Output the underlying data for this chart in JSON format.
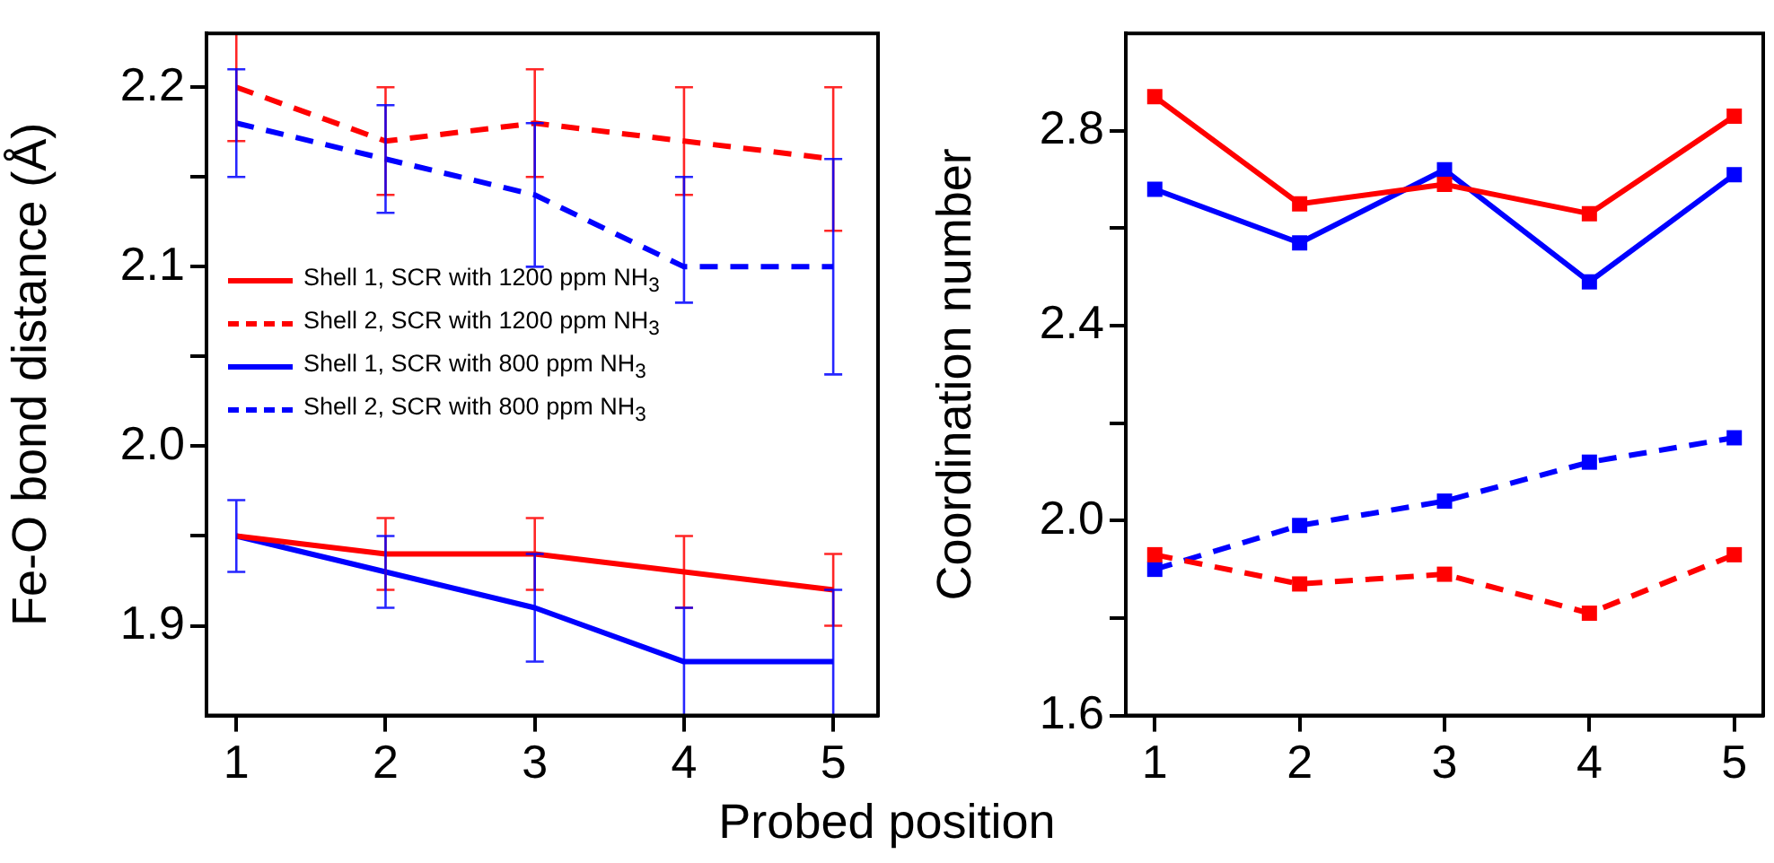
{
  "chart_data": [
    {
      "type": "line",
      "ylabel": "Fe-O bond distance (Å)",
      "xlabel": "Probed position",
      "x": [
        1,
        2,
        3,
        4,
        5
      ],
      "xlim": [
        0.8,
        5.3
      ],
      "xticks": [
        1,
        2,
        3,
        4,
        5
      ],
      "ylim": [
        1.85,
        2.23
      ],
      "yticks": [
        {
          "value": 1.9,
          "label": "1.9"
        },
        {
          "value": 1.95,
          "label": null
        },
        {
          "value": 2.0,
          "label": "2.0"
        },
        {
          "value": 2.05,
          "label": null
        },
        {
          "value": 2.1,
          "label": "2.1"
        },
        {
          "value": 2.15,
          "label": null
        },
        {
          "value": 2.2,
          "label": "2.2"
        }
      ],
      "grid": false,
      "legend": "left",
      "marker": "none",
      "series": [
        {
          "name": "Shell 1, SCR with 1200 ppm NH$_{3}$",
          "color": "#ff0000",
          "line_style": "solid",
          "values": [
            1.95,
            1.94,
            1.94,
            1.93,
            1.92
          ],
          "errors": [
            null,
            0.02,
            0.02,
            0.02,
            0.02
          ]
        },
        {
          "name": "Shell 2, SCR with 1200 ppm NH$_{3}$",
          "color": "#ff0000",
          "line_style": "dashed",
          "values": [
            2.2,
            2.17,
            2.18,
            2.17,
            2.16
          ],
          "errors": [
            0.03,
            0.03,
            0.03,
            0.03,
            0.04
          ]
        },
        {
          "name": "Shell 1, SCR with 800 ppm NH$_{3}$",
          "color": "#0000ff",
          "line_style": "solid",
          "values": [
            1.95,
            1.93,
            1.91,
            1.88,
            1.88
          ],
          "errors": [
            0.02,
            0.02,
            0.03,
            0.03,
            [
              1.85,
              1.92
            ]
          ]
        },
        {
          "name": "Shell 2, SCR with 800 ppm NH$_{3}$",
          "color": "#0000ff",
          "line_style": "dashed",
          "values": [
            2.18,
            2.16,
            2.14,
            2.1,
            2.1
          ],
          "errors": [
            0.03,
            0.03,
            0.04,
            [
              2.08,
              2.15
            ],
            0.06
          ]
        }
      ]
    },
    {
      "type": "line",
      "ylabel": "Coordination number",
      "x": [
        1,
        2,
        3,
        4,
        5
      ],
      "xlim": [
        0.8,
        5.2
      ],
      "xticks": [
        1,
        2,
        3,
        4,
        5
      ],
      "ylim": [
        1.6,
        3.0
      ],
      "yticks": [
        1.6,
        {
          "value": 1.8,
          "label": null
        },
        {
          "value": 2.0,
          "label": "2.0"
        },
        {
          "value": 2.2,
          "label": null
        },
        2.4,
        {
          "value": 2.6,
          "label": null
        },
        2.8
      ],
      "grid": false,
      "legend": false,
      "marker": "square",
      "series": [
        {
          "color": "#ff0000",
          "line_style": "solid",
          "values": [
            2.87,
            2.65,
            2.69,
            2.63,
            2.83
          ]
        },
        {
          "color": "#ff0000",
          "line_style": "dashed",
          "values": [
            1.93,
            1.87,
            1.89,
            1.81,
            1.93
          ]
        },
        {
          "color": "#0000ff",
          "line_style": "solid",
          "values": [
            2.68,
            2.57,
            2.72,
            2.49,
            2.71
          ]
        },
        {
          "color": "#0000ff",
          "line_style": "dashed",
          "values": [
            1.9,
            1.99,
            2.04,
            2.12,
            2.17
          ]
        }
      ]
    }
  ]
}
